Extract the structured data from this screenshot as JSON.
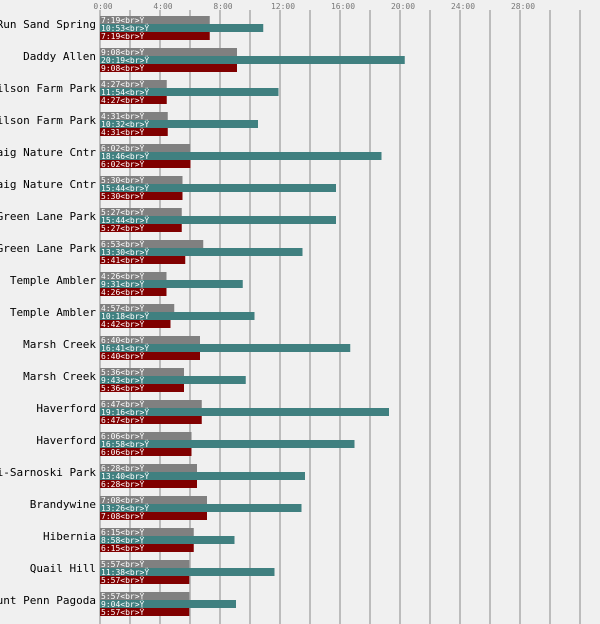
{
  "chart_data": {
    "type": "bar",
    "orientation": "horizontal",
    "xlim_hours": [
      0,
      33.33
    ],
    "x_ticks": [
      "0:00",
      "4:00",
      "8:00",
      "12:00",
      "16:00",
      "20:00",
      "24:00",
      "28:00"
    ],
    "x_tick_values_hours": [
      0,
      4,
      8,
      12,
      16,
      20,
      24,
      28
    ],
    "grid": true,
    "colors": [
      "#808080",
      "#408080",
      "#800000"
    ],
    "label_suffix": "<br>Ÿ",
    "categories": [
      "Run Sand Spring",
      "Daddy Allen",
      "Wilson Farm Park",
      "Wilson Farm Park",
      "Kaig Nature Cntr",
      "Kaig Nature Cntr",
      "Green Lane Park",
      "Green Lane Park",
      "Temple Ambler",
      "Temple Ambler",
      "Marsh Creek",
      "Marsh Creek",
      "Haverford",
      "Haverford",
      "li-Sarnoski Park",
      "Brandywine",
      "Hibernia",
      "Quail Hill",
      "ount Penn Pagoda"
    ],
    "series": [
      {
        "values": [
          "7:19",
          "9:08",
          "4:27",
          "4:31",
          "6:02",
          "5:30",
          "5:27",
          "6:53",
          "4:26",
          "4:57",
          "6:40",
          "5:36",
          "6:47",
          "6:06",
          "6:28",
          "7:08",
          "6:15",
          "5:57",
          "5:57"
        ]
      },
      {
        "values": [
          "10:53",
          "20:19",
          "11:54",
          "10:32",
          "18:46",
          "15:44",
          "15:44",
          "13:30",
          "9:31",
          "10:18",
          "16:41",
          "9:43",
          "19:16",
          "16:58",
          "13:40",
          "13:26",
          "8:58",
          "11:38",
          "9:04"
        ]
      },
      {
        "values": [
          "7:19",
          "9:08",
          "4:27",
          "4:31",
          "6:02",
          "5:30",
          "5:27",
          "5:41",
          "4:26",
          "4:42",
          "6:40",
          "5:36",
          "6:47",
          "6:06",
          "6:28",
          "7:08",
          "6:15",
          "5:57",
          "5:57"
        ]
      }
    ]
  }
}
